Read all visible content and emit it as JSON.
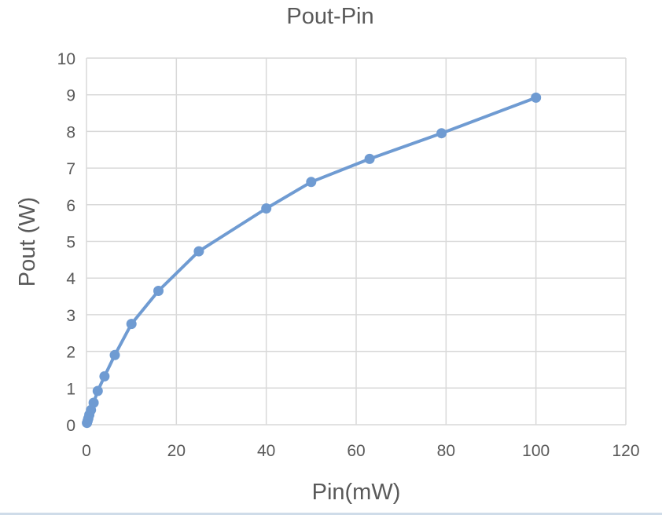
{
  "chart_data": {
    "type": "line",
    "title": "Pout-Pin",
    "xlabel": "Pin(mW)",
    "ylabel": "Pout (W)",
    "xlim": [
      0,
      120
    ],
    "ylim": [
      0,
      10
    ],
    "x_ticks": [
      0,
      20,
      40,
      60,
      80,
      100,
      120
    ],
    "y_ticks": [
      0,
      1,
      2,
      3,
      4,
      5,
      6,
      7,
      8,
      9,
      10
    ],
    "grid": true,
    "legend": "none",
    "series": [
      {
        "color": "#6f9bd2",
        "x": [
          0.1,
          0.25,
          0.4,
          0.63,
          1.0,
          1.6,
          2.5,
          4.0,
          6.3,
          10,
          16,
          25,
          40,
          50,
          63,
          79,
          100
        ],
        "y": [
          0.05,
          0.1,
          0.17,
          0.27,
          0.4,
          0.6,
          0.92,
          1.32,
          1.9,
          2.75,
          3.65,
          4.73,
          5.9,
          6.62,
          7.25,
          7.95,
          8.92
        ]
      }
    ],
    "colors": {
      "grid": "#d9d9d9",
      "axis_text": "#595959",
      "title_text": "#595959"
    }
  }
}
